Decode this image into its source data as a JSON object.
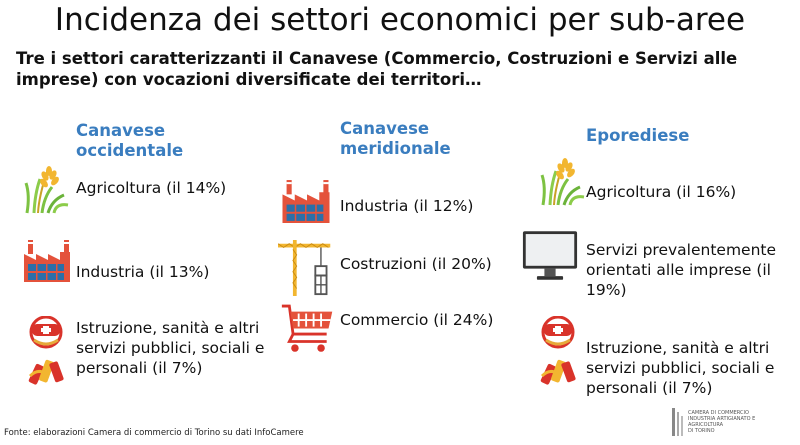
{
  "title": "Incidenza dei settori economici per sub-aree",
  "subtitle": "Tre i settori caratterizzanti il Canavese (Commercio, Costruzioni e Servizi alle imprese) con vocazioni diversificate dei territori…",
  "columns": [
    {
      "heading": "Canavese occidentale",
      "items": [
        {
          "icon": "agriculture-icon",
          "label": "Agricoltura (il 14%)"
        },
        {
          "icon": "factory-icon",
          "label": "Industria (il 13%)"
        },
        {
          "icon": "public-services-icon",
          "label": "Istruzione, sanità e altri servizi pubblici, sociali e personali (il 7%)"
        }
      ]
    },
    {
      "heading": "Canavese meridionale",
      "items": [
        {
          "icon": "factory-icon",
          "label": "Industria (il 12%)"
        },
        {
          "icon": "construction-icon",
          "label": "Costruzioni (il 20%)"
        },
        {
          "icon": "shopping-cart-icon",
          "label": "Commercio (il 24%)"
        }
      ]
    },
    {
      "heading": "Eporediese",
      "items": [
        {
          "icon": "agriculture-icon",
          "label": "Agricoltura (il 16%)"
        },
        {
          "icon": "monitor-icon",
          "label": "Servizi prevalentemente orientati alle imprese (il 19%)"
        },
        {
          "icon": "public-services-icon",
          "label": "Istruzione, sanità e altri servizi pubblici, sociali e personali (il 7%)"
        }
      ]
    }
  ],
  "source": "Fonte: elaborazioni Camera di commercio di Torino su dati InfoCamere",
  "logo_text": [
    "CAMERA DI COMMERCIO",
    "INDUSTRIA ARTIGIANATO E AGRICOLTURA",
    "DI TORINO"
  ],
  "colors": {
    "heading": "#3a7dbf",
    "factory": "#e4523b",
    "grass": "#7dc242",
    "wheat": "#f2b630"
  }
}
